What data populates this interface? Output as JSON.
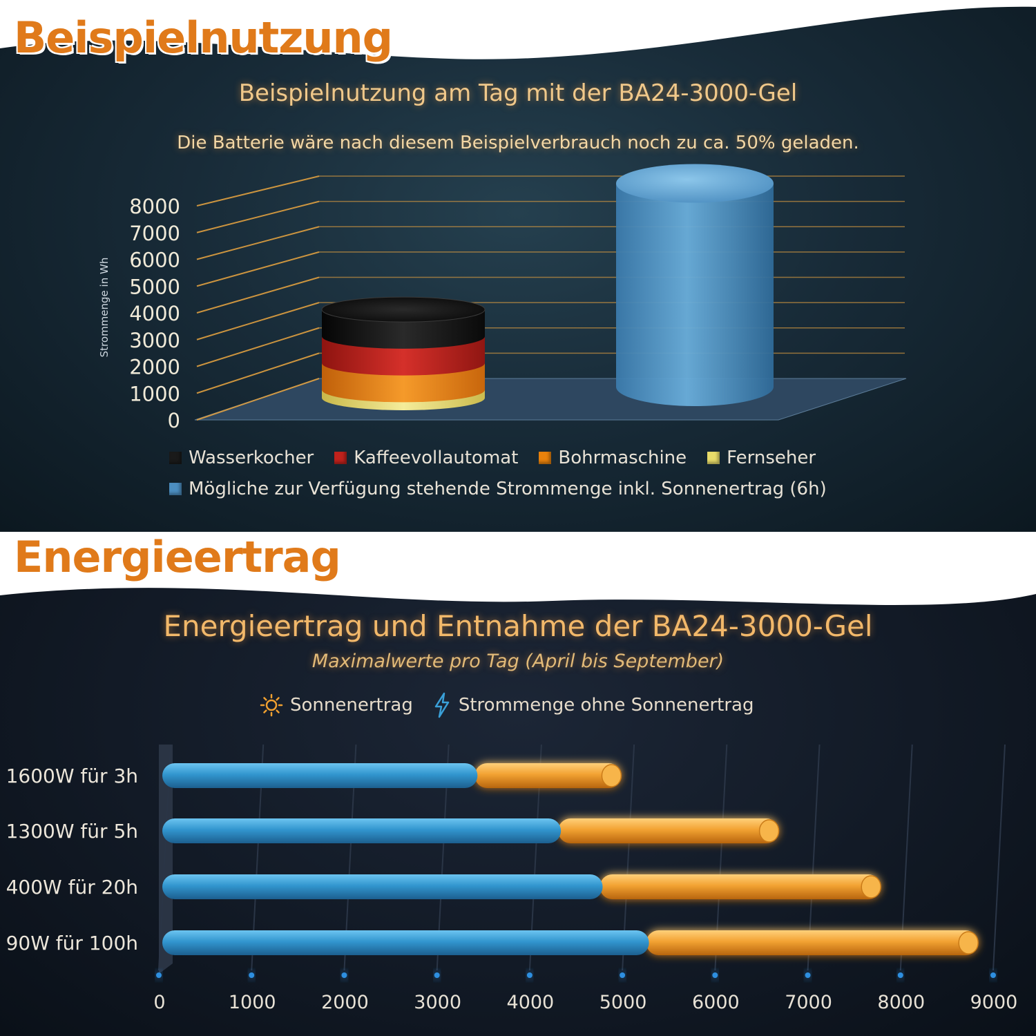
{
  "section1": {
    "heading": "Beispielnutzung",
    "title": "Beispielnutzung am Tag mit der BA24-3000-Gel",
    "subtitle": "Die Batterie wäre nach diesem Beispielverbrauch noch zu ca. 50% geladen."
  },
  "section2": {
    "heading": "Energieertrag",
    "title": "Energieertrag und Entnahme der BA24-3000-Gel",
    "subtitle": "Maximalwerte pro Tag (April bis September)"
  },
  "colors": {
    "heading_orange": "#e07a1a",
    "wasserkocher": "#1a1a1a",
    "kaffeevollautomat": "#c0221c",
    "bohrmaschine": "#e8820c",
    "fernseher": "#e8dc6a",
    "available": "#4c8ec0",
    "sun": "#f0a030",
    "battery": "#3aa0d8"
  },
  "chart_data": [
    {
      "type": "bar",
      "stacked": true,
      "style": "3d-cylinder",
      "ylabel": "Strommenge in Wh",
      "ylim": [
        0,
        8000
      ],
      "yticks": [
        0,
        1000,
        2000,
        3000,
        4000,
        5000,
        6000,
        7000,
        8000
      ],
      "series": [
        {
          "name": "Wasserkocher",
          "color": "#1a1a1a",
          "values": [
            1000,
            0
          ]
        },
        {
          "name": "Kaffeevollautomat",
          "color": "#c0221c",
          "values": [
            1000,
            0
          ]
        },
        {
          "name": "Bohrmaschine",
          "color": "#e8820c",
          "values": [
            1000,
            0
          ]
        },
        {
          "name": "Fernseher",
          "color": "#e8dc6a",
          "values": [
            300,
            0
          ]
        },
        {
          "name": "Mögliche zur Verfügung stehende Strommenge inkl. Sonnenertrag (6h)",
          "color": "#4c8ec0",
          "values": [
            0,
            8000
          ]
        }
      ],
      "legend_position": "bottom",
      "grid": true
    },
    {
      "type": "bar",
      "orientation": "horizontal",
      "stacked": true,
      "categories": [
        "1600W für 3h",
        "1300W für 5h",
        "400W für 20h",
        "90W für 100h"
      ],
      "series": [
        {
          "name": "Strommenge ohne Sonnenertrag",
          "icon": "lightning-icon",
          "color": "#3aa0d8",
          "values": [
            3400,
            4300,
            4750,
            5250
          ]
        },
        {
          "name": "Sonnenertrag",
          "icon": "sun-icon",
          "color": "#f0a030",
          "values": [
            1550,
            2350,
            3000,
            3550
          ]
        }
      ],
      "xlim": [
        0,
        9000
      ],
      "xticks": [
        0,
        1000,
        2000,
        3000,
        4000,
        5000,
        6000,
        7000,
        8000,
        9000
      ],
      "legend_position": "top",
      "grid": true
    }
  ]
}
